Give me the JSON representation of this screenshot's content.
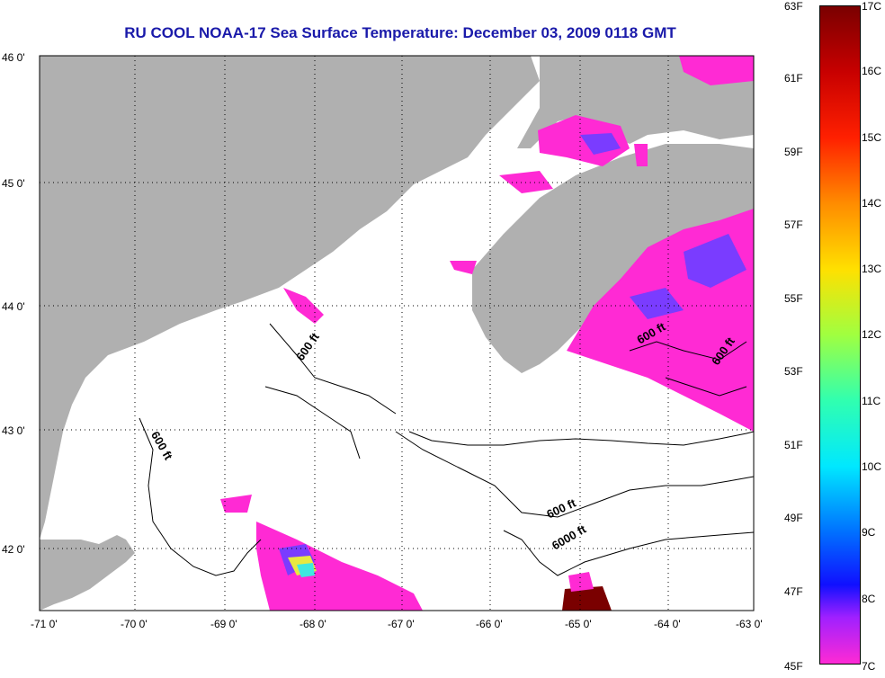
{
  "title": "RU COOL  NOAA-17  Sea Surface Temperature:  December 03, 2009 0118 GMT",
  "axes": {
    "lon_ticks": [
      "-71 0'",
      "-70 0'",
      "-69 0'",
      "-68 0'",
      "-67 0'",
      "-66 0'",
      "-65 0'",
      "-64 0'",
      "-63 0'"
    ],
    "lat_ticks": [
      "46 0'",
      "45 0'",
      "44 0'",
      "43 0'",
      "42 0'"
    ]
  },
  "contours": {
    "c600_a": "600 ft",
    "c600_b": "600 ft",
    "c600_c": "600 ft",
    "c600_d": "600 ft",
    "c600_e": "600 ft",
    "c6000": "6000 ft"
  },
  "colorbar": {
    "f_labels": [
      "63F",
      "61F",
      "59F",
      "57F",
      "55F",
      "53F",
      "51F",
      "49F",
      "47F",
      "45F"
    ],
    "c_labels": [
      "17C",
      "16C",
      "15C",
      "14C",
      "13C",
      "12C",
      "11C",
      "10C",
      "9C",
      "8C",
      "7C"
    ]
  },
  "colors": {
    "land": "#b0b0b0",
    "title": "#1a1aaa",
    "magenta": "#ff2ad4",
    "dark_red": "#7a0000"
  }
}
